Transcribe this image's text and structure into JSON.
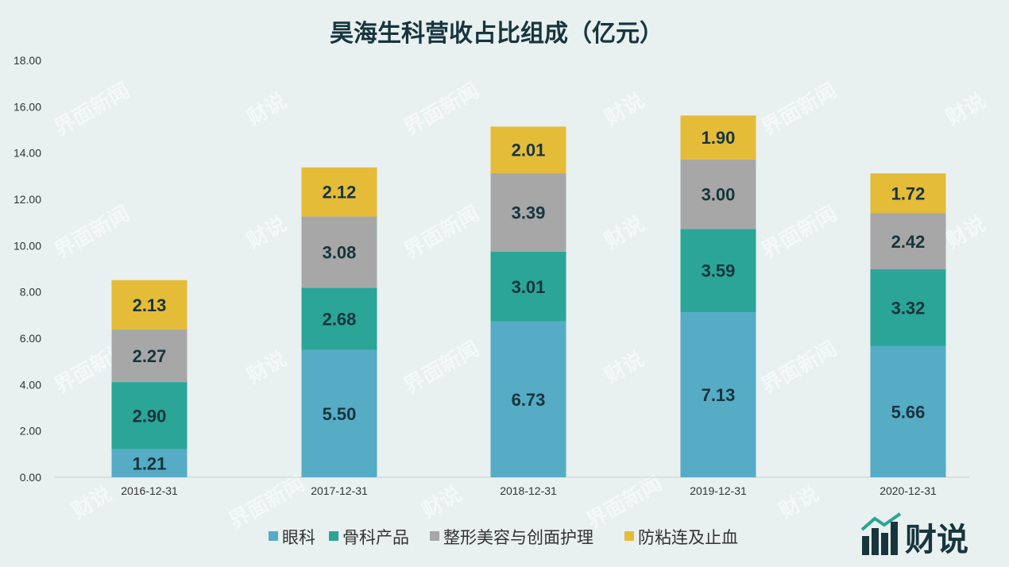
{
  "chart_data": {
    "type": "bar",
    "stacked": true,
    "title": "昊海生科营收占比组成（亿元）",
    "categories": [
      "2016-12-31",
      "2017-12-31",
      "2018-12-31",
      "2019-12-31",
      "2020-12-31"
    ],
    "series": [
      {
        "name": "眼科",
        "color": "#56abc5",
        "values": [
          1.21,
          5.5,
          6.73,
          7.13,
          5.66
        ]
      },
      {
        "name": "骨科产品",
        "color": "#2aa597",
        "values": [
          2.9,
          2.68,
          3.01,
          3.59,
          3.32
        ]
      },
      {
        "name": "整形美容与创面护理",
        "color": "#a7a7a7",
        "values": [
          2.27,
          3.08,
          3.39,
          3.0,
          2.42
        ]
      },
      {
        "name": "防粘连及止血",
        "color": "#e5bc38",
        "values": [
          2.13,
          2.12,
          2.01,
          1.9,
          1.72
        ]
      }
    ],
    "yticks": [
      "0.00",
      "2.00",
      "4.00",
      "6.00",
      "8.00",
      "10.00",
      "12.00",
      "14.00",
      "16.00",
      "18.00"
    ],
    "ylim": [
      0,
      18
    ],
    "grid": false,
    "legend_position": "bottom"
  },
  "watermark": {
    "text": "界面新闻",
    "brand_text": "财说",
    "brand_corner_text": "财说"
  },
  "colors": {
    "background": "#e8f0f0",
    "title": "#17353d"
  }
}
